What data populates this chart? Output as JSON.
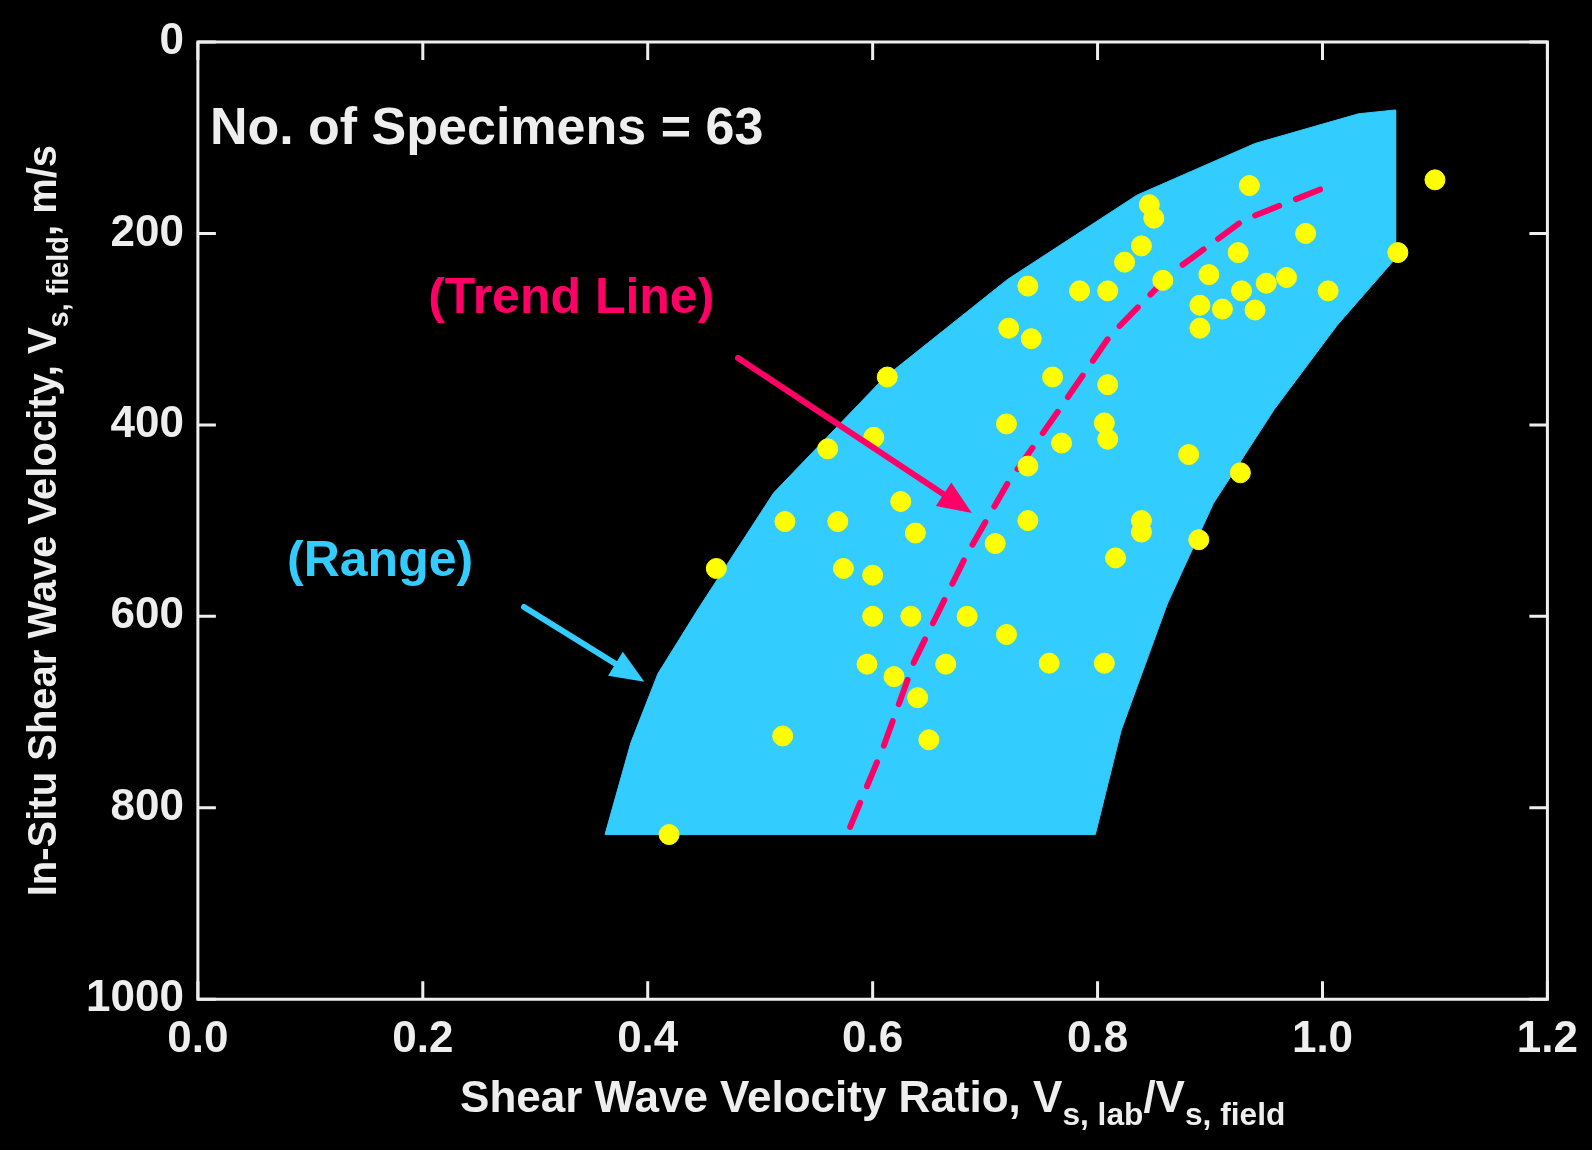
{
  "chart_data": {
    "type": "scatter",
    "xlabel": "Shear Wave Velocity Ratio, V$_{s, lab}$/V$_{s, field}$",
    "ylabel": "In-Situ Shear Wave Velocity, V$_{s, field}$, m/s",
    "xlim": [
      0,
      1.2
    ],
    "xticks": [
      {
        "value": 0,
        "label": "0.0"
      },
      {
        "value": 0.2,
        "label": "0.2"
      },
      {
        "value": 0.4,
        "label": "0.4"
      },
      {
        "value": 0.6,
        "label": "0.6"
      },
      {
        "value": 0.8,
        "label": "0.8"
      },
      {
        "value": 1,
        "label": "1.0"
      },
      {
        "value": 1.2,
        "label": "1.2"
      }
    ],
    "ylim": [
      1000,
      0
    ],
    "yticks": [
      0,
      200,
      400,
      600,
      800,
      1000
    ],
    "annotations": [
      "No. of Specimens = 63"
    ],
    "legend": false,
    "series": [
      {
        "type": "area",
        "name": "(Range)",
        "color": "#33ccff",
        "x": [
          0.362,
          0.385,
          0.409,
          0.445,
          0.512,
          0.61,
          0.72,
          0.835,
          0.94,
          1.032,
          1.065,
          1.065,
          1.013,
          0.957,
          0.903,
          0.862,
          0.821,
          0.798
        ],
        "values": [
          828,
          732,
          660,
          592,
          471,
          351,
          248,
          160,
          106,
          75,
          71,
          226,
          296,
          384,
          482,
          587,
          719,
          828
        ]
      },
      {
        "type": "line",
        "name": "(Trend Line)",
        "color": "#ff0066",
        "line_style": "dashed",
        "x": [
          0.58,
          0.61,
          0.637,
          0.683,
          0.72,
          0.766,
          0.811,
          0.866,
          0.93,
          0.998
        ],
        "values": [
          820,
          735,
          647,
          537,
          461,
          384,
          307,
          241,
          186,
          154
        ]
      },
      {
        "color": "#ffff00",
        "marker": "circle",
        "x": [
          1.1,
          1.067,
          0.935,
          0.985,
          0.925,
          0.899,
          0.928,
          0.911,
          0.891,
          0.891,
          0.95,
          0.968,
          0.94,
          1.005,
          0.846,
          0.85,
          0.839,
          0.824,
          0.858,
          0.809,
          0.784,
          0.738,
          0.721,
          0.741,
          0.76,
          0.809,
          0.719,
          0.806,
          0.809,
          0.768,
          0.881,
          0.738,
          0.927,
          0.738,
          0.839,
          0.839,
          0.89,
          0.709,
          0.816,
          0.719,
          0.757,
          0.806,
          0.613,
          0.601,
          0.56,
          0.625,
          0.638,
          0.522,
          0.569,
          0.574,
          0.6,
          0.461,
          0.6,
          0.634,
          0.684,
          0.595,
          0.665,
          0.619,
          0.64,
          0.52,
          0.65,
          0.419
        ],
        "values": [
          144,
          220,
          150,
          200,
          220,
          243,
          260,
          279,
          275,
          299,
          252,
          246,
          280,
          260,
          170,
          184,
          213,
          230,
          249,
          260,
          260,
          255,
          299,
          310,
          350,
          358,
          399,
          398,
          415,
          419,
          431,
          443,
          450,
          500,
          500,
          512,
          520,
          524,
          539,
          619,
          649,
          649,
          350,
          413,
          425,
          480,
          513,
          501,
          501,
          550,
          557,
          550,
          600,
          600,
          600,
          650,
          650,
          663,
          685,
          725,
          729,
          828
        ]
      }
    ]
  }
}
